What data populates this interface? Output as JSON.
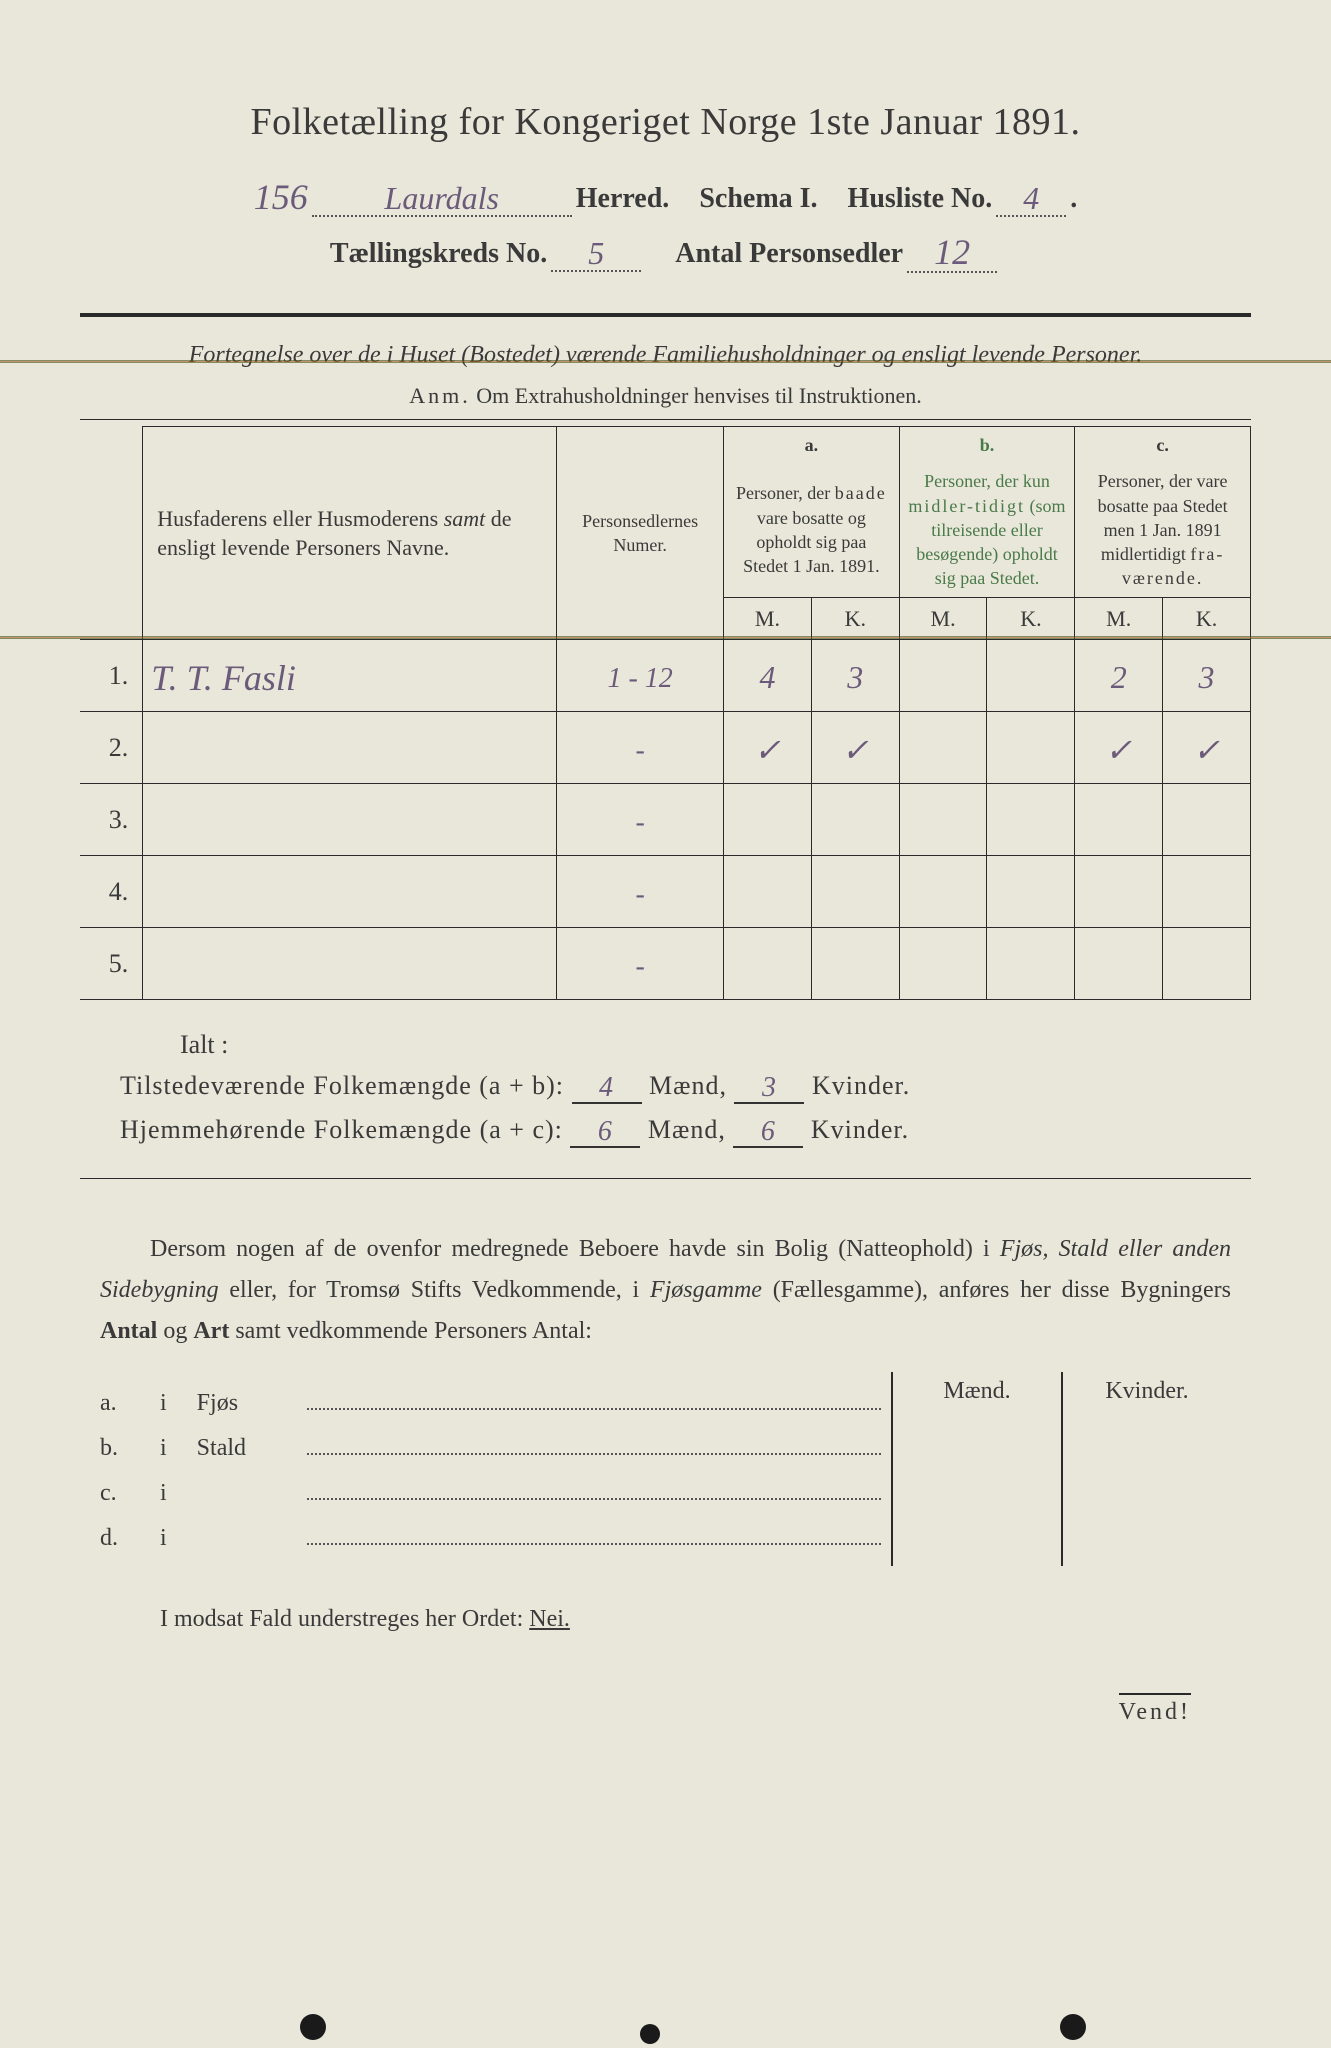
{
  "colors": {
    "paper": "#e8e7d9",
    "ink": "#3a3a3a",
    "handwriting": "#6b5a7a",
    "green_print": "#4a7a4a",
    "background": "#1a1a1a"
  },
  "title": "Folketælling for Kongeriget Norge 1ste Januar 1891.",
  "header": {
    "district_number_hw": "156",
    "herred_hw": "Laurdals",
    "herred_label": "Herred.",
    "schema_label": "Schema I.",
    "husliste_label": "Husliste No.",
    "husliste_no_hw": "4",
    "kreds_label": "Tællingskreds No.",
    "kreds_no_hw": "5",
    "personsedler_label": "Antal Personsedler",
    "personsedler_hw": "12"
  },
  "subtitle_italic": "Fortegnelse over de i Huset (Bostedet) værende Familiehusholdninger og ensligt levende Personer.",
  "anm": {
    "prefix": "Anm.",
    "text": "Om Extrahusholdninger henvises til Instruktionen."
  },
  "table": {
    "col1_heading": "Husfaderens eller Husmoderens samt de ensligt levende Personers Navne.",
    "col1_italic_word": "samt",
    "col2_heading": "Personsedlernes Numer.",
    "group_a": {
      "label": "a.",
      "text": "Personer, der baade vare bosatte og opholdt sig paa Stedet 1 Jan. 1891."
    },
    "group_b": {
      "label": "b.",
      "text": "Personer, der kun midlertidigt (som tilreisende eller besøgende) opholdt sig paa Stedet."
    },
    "group_c": {
      "label": "c.",
      "text": "Personer, der vare bosatte paa Stedet men 1 Jan. 1891 midlertidigt fraværende."
    },
    "mk_m": "M.",
    "mk_k": "K.",
    "rows": [
      {
        "num": "1.",
        "name_hw": "T. T. Fasli",
        "sedler_hw": "1 - 12",
        "a_m": "4",
        "a_k": "3",
        "b_m": "",
        "b_k": "",
        "c_m": "2",
        "c_k": "3"
      },
      {
        "num": "2.",
        "name_hw": "",
        "sedler_hw": "-",
        "a_m": "✓",
        "a_k": "✓",
        "b_m": "",
        "b_k": "",
        "c_m": "✓",
        "c_k": "✓"
      },
      {
        "num": "3.",
        "name_hw": "",
        "sedler_hw": "-",
        "a_m": "",
        "a_k": "",
        "b_m": "",
        "b_k": "",
        "c_m": "",
        "c_k": ""
      },
      {
        "num": "4.",
        "name_hw": "",
        "sedler_hw": "-",
        "a_m": "",
        "a_k": "",
        "b_m": "",
        "b_k": "",
        "c_m": "",
        "c_k": ""
      },
      {
        "num": "5.",
        "name_hw": "",
        "sedler_hw": "-",
        "a_m": "",
        "a_k": "",
        "b_m": "",
        "b_k": "",
        "c_m": "",
        "c_k": ""
      }
    ]
  },
  "totals": {
    "ialt_label": "Ialt :",
    "line1": {
      "label": "Tilstedeværende Folkemængde (a + b):",
      "maend_hw": "4",
      "maend_label": "Mænd,",
      "kvinder_hw": "3",
      "kvinder_label": "Kvinder."
    },
    "line2": {
      "label": "Hjemmehørende Folkemængde (a + c):",
      "maend_hw": "6",
      "maend_label": "Mænd,",
      "kvinder_hw": "6",
      "kvinder_label": "Kvinder."
    }
  },
  "paragraph": "Dersom nogen af de ovenfor medregnede Beboere havde sin Bolig (Natteophold) i Fjøs, Stald eller anden Sidebygning eller, for Tromsø Stifts Vedkommende, i Fjøsgamme (Fællesgamme), anføres her disse Bygningers Antal og Art samt vedkommende Personers Antal:",
  "side_table": {
    "head_m": "Mænd.",
    "head_k": "Kvinder.",
    "rows": [
      {
        "a": "a.",
        "i": "i",
        "label": "Fjøs"
      },
      {
        "a": "b.",
        "i": "i",
        "label": "Stald"
      },
      {
        "a": "c.",
        "i": "i",
        "label": ""
      },
      {
        "a": "d.",
        "i": "i",
        "label": ""
      }
    ]
  },
  "modsat": {
    "text": "I modsat Fald understreges her Ordet:",
    "nei": "Nei."
  },
  "vend": "Vend!"
}
